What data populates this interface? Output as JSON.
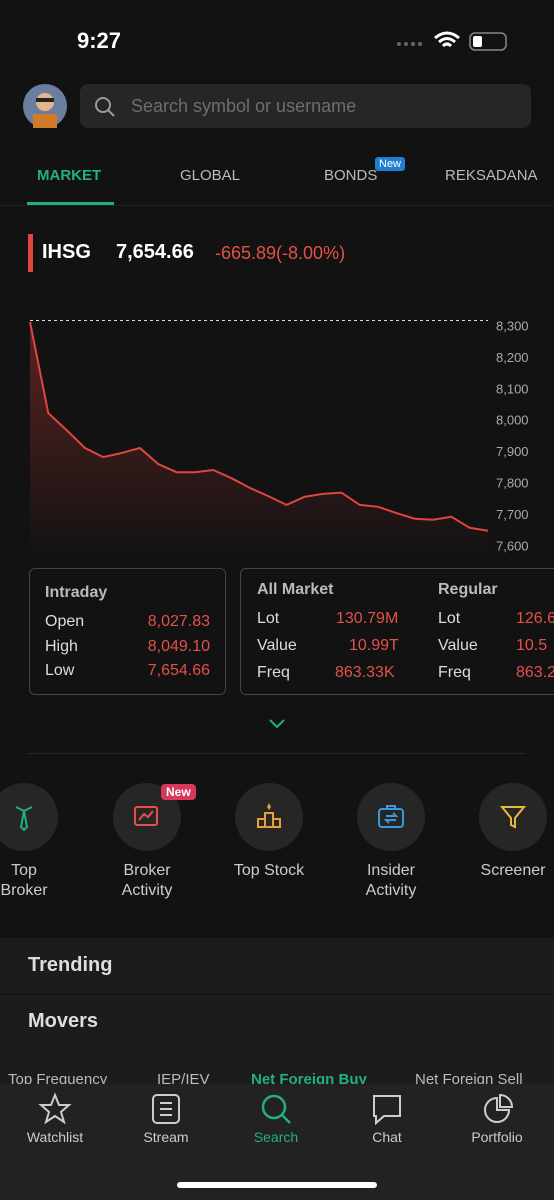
{
  "status_bar": {
    "time": "9:27"
  },
  "search": {
    "placeholder": "Search symbol or username"
  },
  "tabs": [
    {
      "label": "MARKET"
    },
    {
      "label": "GLOBAL"
    },
    {
      "label": "BONDS",
      "badge": "New"
    },
    {
      "label": "REKSADANA"
    }
  ],
  "index": {
    "name": "IHSG",
    "value": "7,654.66",
    "change": "-665.89(-8.00%)"
  },
  "chart_data": {
    "type": "line",
    "values": [
      8316,
      8026,
      7972,
      7915,
      7886,
      7899,
      7915,
      7864,
      7838,
      7838,
      7845,
      7819,
      7788,
      7762,
      7734,
      7760,
      7769,
      7773,
      7734,
      7728,
      7708,
      7690,
      7687,
      7696,
      7661,
      7652
    ],
    "color": "#e0453f",
    "reference_line": 8320.55,
    "ylim": [
      7560,
      8340
    ],
    "yticks": [
      {
        "value": 7600,
        "label": "7,600"
      },
      {
        "value": 7700,
        "label": "7,700"
      },
      {
        "value": 7800,
        "label": "7,800"
      },
      {
        "value": 7900,
        "label": "7,900"
      },
      {
        "value": 8000,
        "label": "8,000"
      },
      {
        "value": 8100,
        "label": "8,100"
      },
      {
        "value": 8200,
        "label": "8,200"
      },
      {
        "value": 8300,
        "label": "8,300"
      }
    ]
  },
  "intraday": {
    "title": "Intraday",
    "rows": [
      [
        "Open",
        "8,027.83"
      ],
      [
        "High",
        "8,049.10"
      ],
      [
        "Low",
        "7,654.66"
      ]
    ]
  },
  "all_market": {
    "title": "All Market",
    "rows": [
      [
        "Lot",
        "130.79M"
      ],
      [
        "Value",
        "10.99T"
      ],
      [
        "Freq",
        "863.33K"
      ]
    ]
  },
  "regular": {
    "title": "Regular",
    "rows": [
      [
        "Lot",
        "126.6"
      ],
      [
        "Value",
        "10.5"
      ],
      [
        "Freq",
        "863.2"
      ]
    ]
  },
  "menu": [
    {
      "lines": [
        "Top",
        "Broker"
      ]
    },
    {
      "lines": [
        "Broker",
        "Activity"
      ],
      "badge": "New"
    },
    {
      "lines": [
        "Top Stock"
      ]
    },
    {
      "lines": [
        "Insider",
        "Activity"
      ]
    },
    {
      "lines": [
        "Screener"
      ]
    }
  ],
  "sections": [
    "Trending",
    "Movers"
  ],
  "movers_tabs": [
    "Top Frequency",
    "IEP/IEV",
    "Net Foreign Buy",
    "Net Foreign Sell"
  ],
  "nav": [
    "Watchlist",
    "Stream",
    "Search",
    "Chat",
    "Portfolio"
  ]
}
